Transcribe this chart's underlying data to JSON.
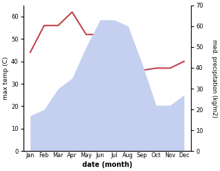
{
  "months": [
    "Jan",
    "Feb",
    "Mar",
    "Apr",
    "May",
    "Jun",
    "Jul",
    "Aug",
    "Sep",
    "Oct",
    "Nov",
    "Dec"
  ],
  "max_temp": [
    44,
    56,
    56,
    62,
    52,
    52,
    39,
    37,
    36,
    37,
    37,
    40
  ],
  "precipitation": [
    17,
    20,
    30,
    35,
    50,
    63,
    63,
    60,
    42,
    22,
    22,
    27
  ],
  "temp_color": "#c0434a",
  "precip_fill_color": "#c5d0f0",
  "xlabel": "date (month)",
  "ylabel_left": "max temp (C)",
  "ylabel_right": "med. precipitation (kg/m2)",
  "ylim_left": [
    0,
    65
  ],
  "ylim_right": [
    0,
    70
  ],
  "yticks_left": [
    0,
    10,
    20,
    30,
    40,
    50,
    60
  ],
  "yticks_right": [
    0,
    10,
    20,
    30,
    40,
    50,
    60,
    70
  ],
  "background_color": "#ffffff"
}
